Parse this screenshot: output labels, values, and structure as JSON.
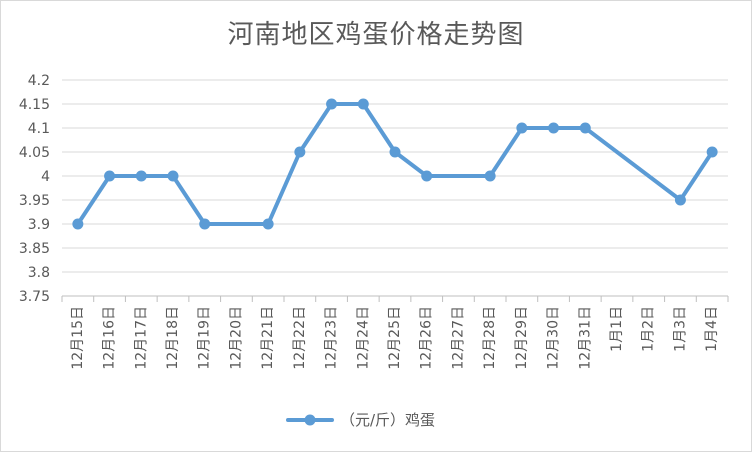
{
  "chart_data": {
    "type": "line",
    "title": "河南地区鸡蛋价格走势图",
    "xlabel": "",
    "ylabel": "",
    "ylim": [
      3.75,
      4.2
    ],
    "yticks": [
      "4.2",
      "4.15",
      "4.1",
      "4.05",
      "4",
      "3.95",
      "3.9",
      "3.85",
      "3.8",
      "3.75"
    ],
    "grid": true,
    "legend_position": "bottom",
    "categories": [
      "12月15日",
      "12月16日",
      "12月17日",
      "12月18日",
      "12月19日",
      "12月20日",
      "12月21日",
      "12月22日",
      "12月23日",
      "12月24日",
      "12月25日",
      "12月26日",
      "12月27日",
      "12月28日",
      "12月29日",
      "12月30日",
      "12月31日",
      "1月1日",
      "1月2日",
      "1月3日",
      "1月4日"
    ],
    "series": [
      {
        "name": "（元/斤）鸡蛋",
        "color": "#5b9bd5",
        "values": [
          3.9,
          4.0,
          4.0,
          4.0,
          3.9,
          null,
          3.9,
          4.05,
          4.15,
          4.15,
          4.05,
          4.0,
          null,
          4.0,
          4.1,
          4.1,
          4.1,
          null,
          null,
          3.95,
          4.05
        ]
      }
    ]
  }
}
